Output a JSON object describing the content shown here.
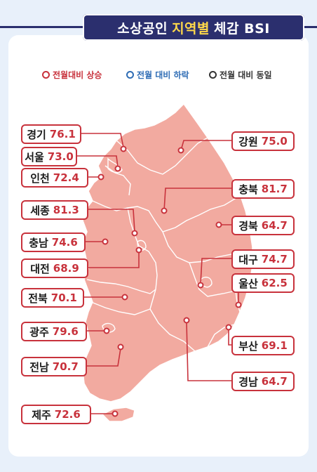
{
  "header": {
    "title_prefix": "소상공인",
    "title_highlight": "지역별",
    "title_suffix": "체감 BSI"
  },
  "legend": [
    {
      "label": "전월대비 상승",
      "color": "#c8323c"
    },
    {
      "label": "전월 대비 하락",
      "color": "#2f6db5"
    },
    {
      "label": "전월 대비 동일",
      "color": "#333333"
    }
  ],
  "colors": {
    "map_fill": "#f2aaa0",
    "map_border": "#ffffff",
    "accent": "#c8323c",
    "banner": "#2b2f6e",
    "highlight": "#ffd84a"
  },
  "regions": [
    {
      "name": "경기",
      "value": "76.1"
    },
    {
      "name": "서울",
      "value": "73.0"
    },
    {
      "name": "인천",
      "value": "72.4"
    },
    {
      "name": "세종",
      "value": "81.3"
    },
    {
      "name": "충남",
      "value": "74.6"
    },
    {
      "name": "대전",
      "value": "68.9"
    },
    {
      "name": "전북",
      "value": "70.1"
    },
    {
      "name": "광주",
      "value": "79.6"
    },
    {
      "name": "전남",
      "value": "70.7"
    },
    {
      "name": "제주",
      "value": "72.6"
    },
    {
      "name": "강원",
      "value": "75.0"
    },
    {
      "name": "충북",
      "value": "81.7"
    },
    {
      "name": "경북",
      "value": "64.7"
    },
    {
      "name": "대구",
      "value": "74.7"
    },
    {
      "name": "울산",
      "value": "62.5"
    },
    {
      "name": "부산",
      "value": "69.1"
    },
    {
      "name": "경남",
      "value": "64.7"
    }
  ]
}
